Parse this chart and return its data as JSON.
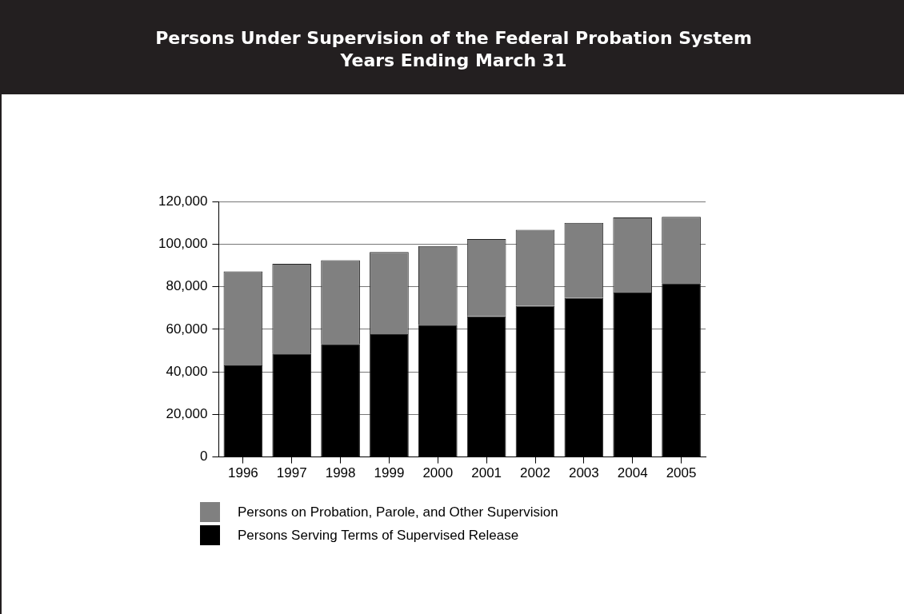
{
  "chart_data": {
    "type": "bar",
    "title": "Persons Under Supervision of the Federal Probation System",
    "subtitle": "Years Ending March 31",
    "categories": [
      "1996",
      "1997",
      "1998",
      "1999",
      "2000",
      "2001",
      "2002",
      "2003",
      "2004",
      "2005"
    ],
    "series": [
      {
        "name": "Persons Serving Terms of Supervised Release",
        "color": "#000000",
        "values": [
          43100,
          48600,
          53100,
          57700,
          62100,
          66100,
          71000,
          74700,
          77200,
          81700
        ]
      },
      {
        "name": "Persons on Probation, Parole, and Other Supervision",
        "color": "#808080",
        "values": [
          44100,
          42200,
          39400,
          38600,
          37000,
          36300,
          35700,
          35300,
          35400,
          31100
        ]
      }
    ],
    "stacked": true,
    "ylim": [
      0,
      120000
    ],
    "yticks": [
      0,
      {
        "value": 20000,
        "label": "20,000"
      },
      {
        "value": 40000,
        "label": "40,000"
      },
      {
        "value": 60000,
        "label": "60,000"
      },
      {
        "value": 80000,
        "label": "80,000"
      },
      {
        "value": 100000,
        "label": "100,000"
      },
      {
        "value": 120000,
        "label": "120,000"
      }
    ],
    "grid": "y",
    "legend": "bottom"
  }
}
